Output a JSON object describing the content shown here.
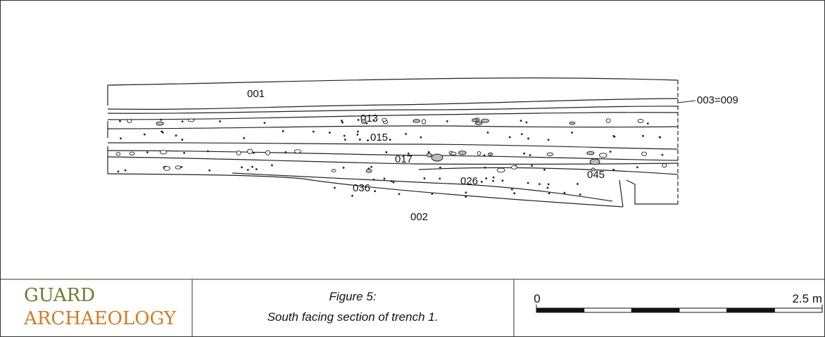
{
  "section": {
    "labels": [
      "001",
      "003=009",
      "013",
      "015",
      "017",
      "026",
      "036",
      "045",
      "002"
    ]
  },
  "logo": {
    "line1": "GUARD",
    "line2": "ARCHAEOLOGY"
  },
  "caption": {
    "line1": "Figure 5:",
    "line2": "South facing section of  trench 1."
  },
  "scale_bar": {
    "start": "0",
    "end": "2.5 m"
  }
}
